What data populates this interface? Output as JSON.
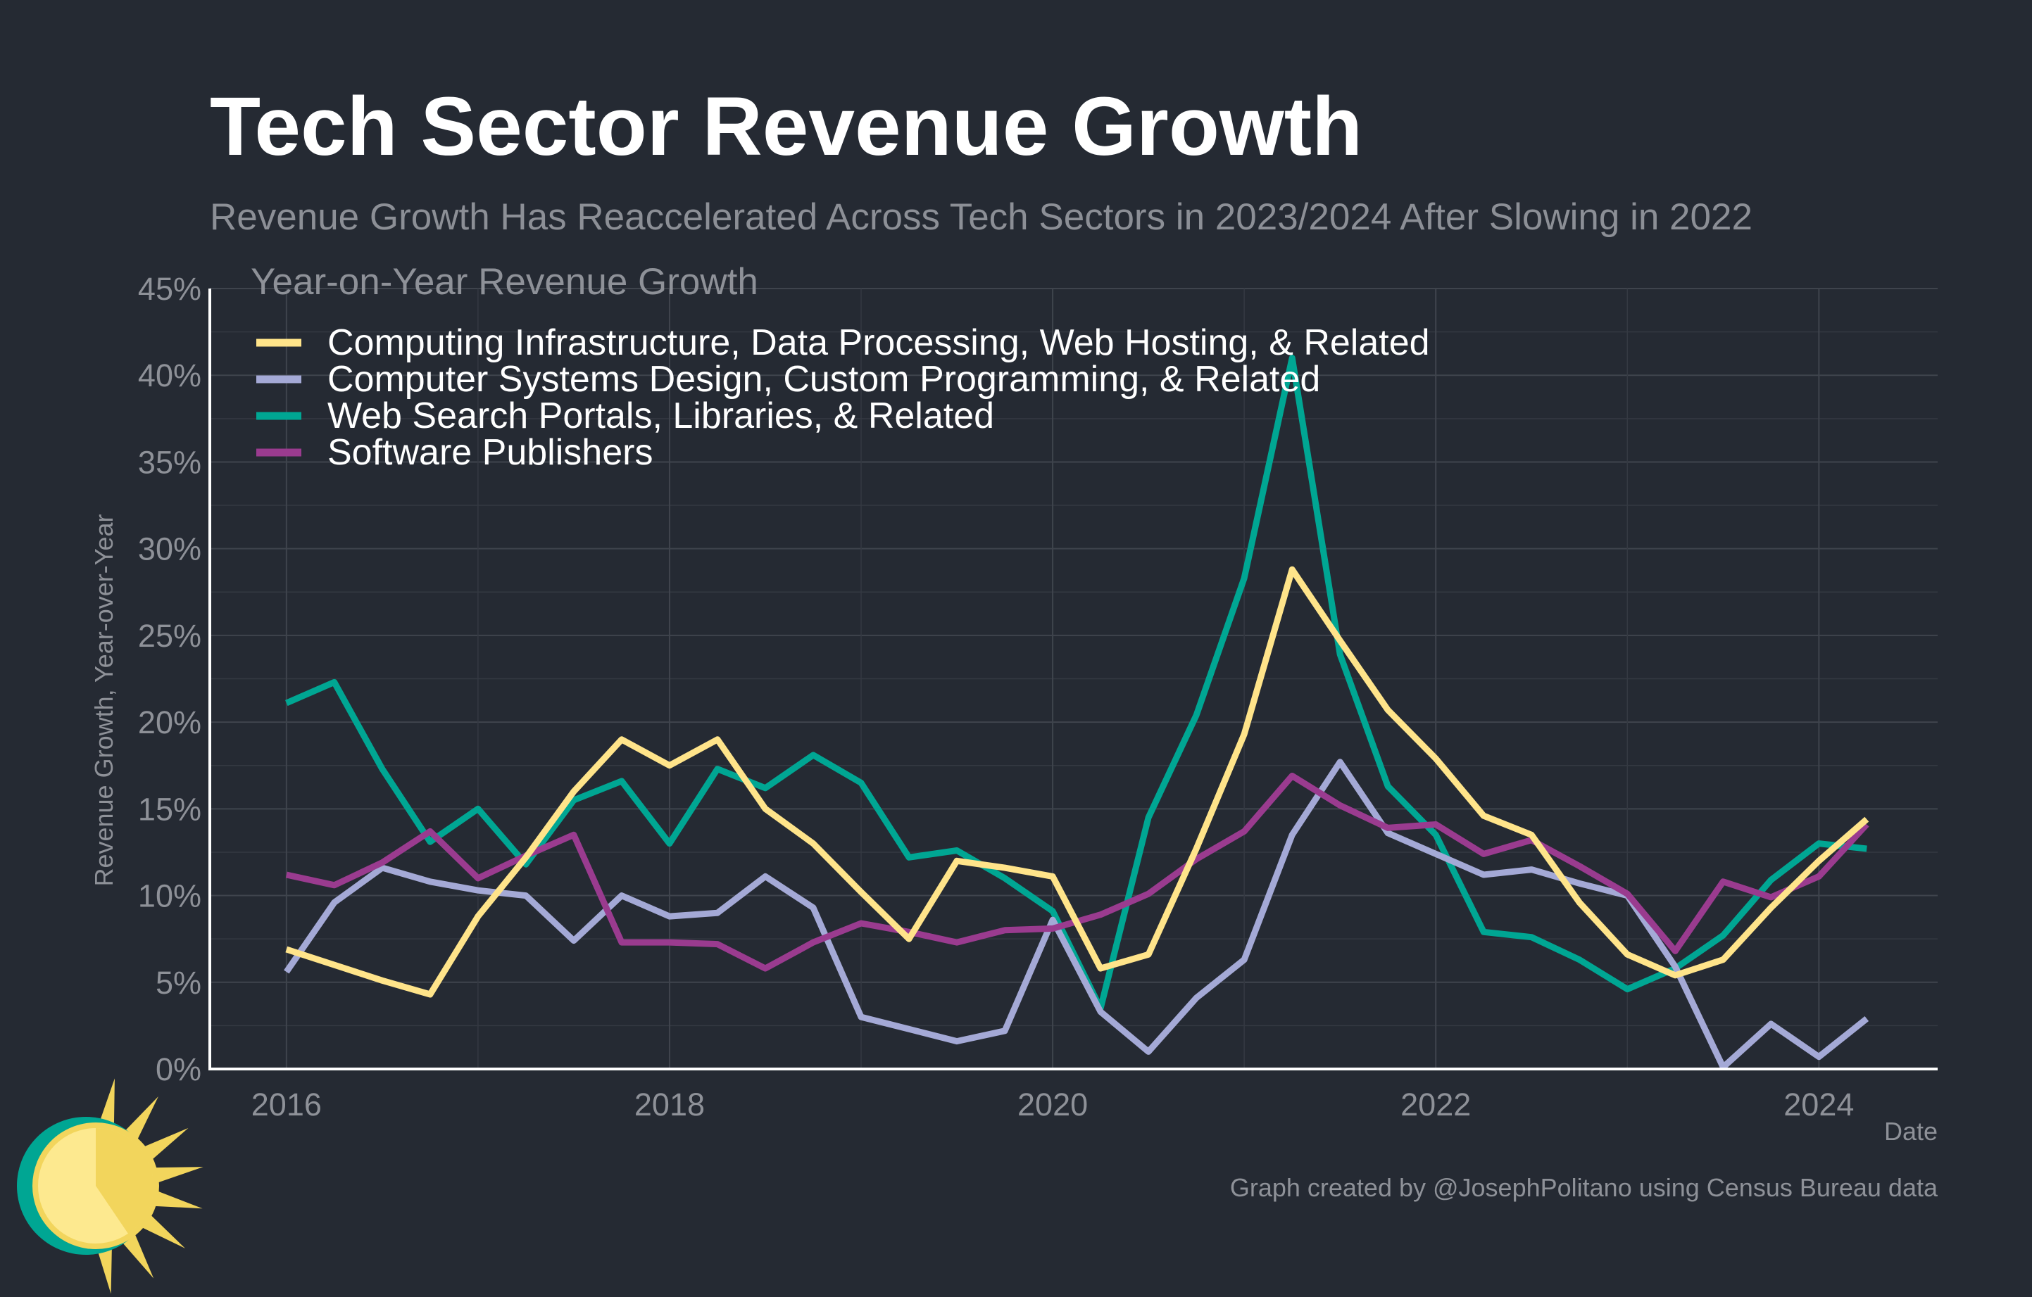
{
  "colors": {
    "background": "#252a33",
    "computing": "#ffe48a",
    "systems": "#a4a9d6",
    "search": "#00a693",
    "software": "#9a3b8f"
  },
  "header": {
    "title": "Tech Sector Revenue Growth",
    "subtitle": "Revenue Growth Has Reaccelerated Across Tech Sectors in 2023/2024 After Slowing in 2022"
  },
  "footer": {
    "caption": "Graph created by @JosephPolitano using Census Bureau data",
    "logo_icon": "sun-logo-icon"
  },
  "chart_data": {
    "type": "line",
    "title": "Tech Sector Revenue Growth",
    "subtitle": "Revenue Growth Has Reaccelerated Across Tech Sectors in 2023/2024 After Slowing in 2022",
    "xlabel": "Date",
    "ylabel": "Revenue Growth, Year-over-Year",
    "legend_title": "Year-on-Year Revenue Growth",
    "legend_position": "top-left",
    "grid": true,
    "xlim": [
      2015.6,
      2024.62
    ],
    "ylim": [
      0,
      45
    ],
    "x_ticks": [
      2016,
      2018,
      2020,
      2022,
      2024
    ],
    "x_tick_labels": [
      "2016",
      "2018",
      "2020",
      "2022",
      "2024"
    ],
    "y_ticks": [
      0,
      5,
      10,
      15,
      20,
      25,
      30,
      35,
      40,
      45
    ],
    "y_tick_labels": [
      "0%",
      "5%",
      "10%",
      "15%",
      "20%",
      "25%",
      "30%",
      "35%",
      "40%",
      "45%"
    ],
    "x": [
      2016.0,
      2016.25,
      2016.5,
      2016.75,
      2017.0,
      2017.25,
      2017.5,
      2017.75,
      2018.0,
      2018.25,
      2018.5,
      2018.75,
      2019.0,
      2019.25,
      2019.5,
      2019.75,
      2020.0,
      2020.25,
      2020.5,
      2020.75,
      2021.0,
      2021.25,
      2021.5,
      2021.75,
      2022.0,
      2022.25,
      2022.5,
      2022.75,
      2023.0,
      2023.25,
      2023.5,
      2023.75,
      2024.0,
      2024.25
    ],
    "series": [
      {
        "name": "Computing Infrastructure, Data Processing, Web Hosting, & Related",
        "color": "#ffe48a",
        "values": [
          6.9,
          6.0,
          5.1,
          4.3,
          8.8,
          12.2,
          16.0,
          19.0,
          17.5,
          19.0,
          15.0,
          13.0,
          10.2,
          7.5,
          12.0,
          11.6,
          11.1,
          5.8,
          6.6,
          12.7,
          19.3,
          28.8,
          24.7,
          20.7,
          17.9,
          14.6,
          13.5,
          9.6,
          6.6,
          5.4,
          6.3,
          9.3,
          12.0,
          14.4
        ]
      },
      {
        "name": "Computer Systems Design, Custom Programming, & Related",
        "color": "#a4a9d6",
        "values": [
          5.6,
          9.6,
          11.6,
          10.8,
          10.3,
          10.0,
          7.4,
          10.0,
          8.8,
          9.0,
          11.1,
          9.3,
          3.0,
          2.3,
          1.6,
          2.2,
          8.6,
          3.3,
          1.0,
          4.1,
          6.3,
          13.5,
          17.7,
          13.6,
          12.4,
          11.2,
          11.5,
          10.7,
          10.0,
          5.9,
          0.1,
          2.6,
          0.7,
          2.9
        ]
      },
      {
        "name": "Web Search Portals, Libraries, & Related",
        "color": "#00a693",
        "values": [
          21.1,
          22.3,
          17.3,
          13.1,
          15.0,
          11.8,
          15.5,
          16.6,
          13.0,
          17.3,
          16.2,
          18.1,
          16.5,
          12.2,
          12.6,
          11.0,
          9.1,
          3.5,
          14.5,
          20.4,
          28.3,
          41.0,
          23.9,
          16.3,
          13.5,
          7.9,
          7.6,
          6.3,
          4.6,
          5.8,
          7.7,
          10.9,
          13.0,
          12.7
        ]
      },
      {
        "name": "Software Publishers",
        "color": "#9a3b8f",
        "values": [
          11.2,
          10.6,
          11.9,
          13.7,
          11.0,
          12.3,
          13.5,
          7.3,
          7.3,
          7.2,
          5.8,
          7.3,
          8.4,
          7.9,
          7.3,
          8.0,
          8.1,
          8.9,
          10.1,
          12.1,
          13.7,
          16.9,
          15.2,
          13.9,
          14.1,
          12.4,
          13.2,
          11.7,
          10.1,
          6.8,
          10.8,
          9.9,
          11.1,
          14.1
        ]
      }
    ]
  }
}
